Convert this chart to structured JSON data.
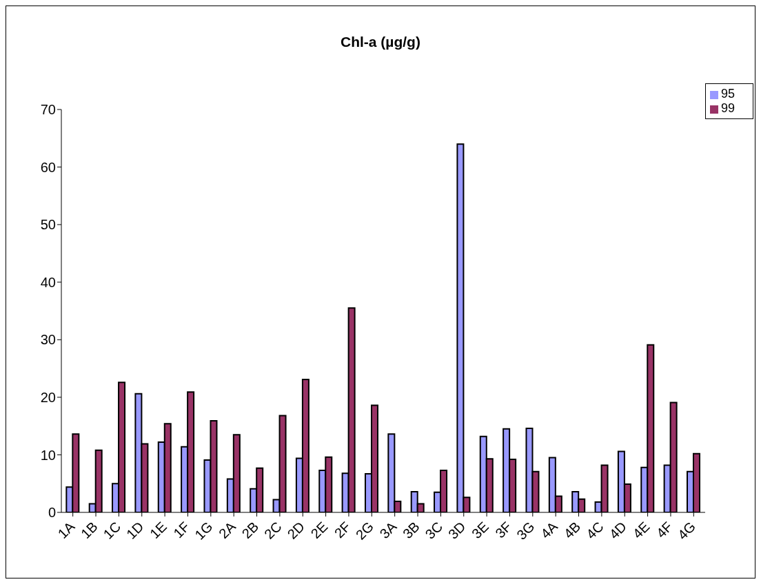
{
  "chart_data": {
    "type": "bar",
    "title": "Chl-a (µg/g)",
    "categories": [
      "1A",
      "1B",
      "1C",
      "1D",
      "1E",
      "1F",
      "1G",
      "2A",
      "2B",
      "2C",
      "2D",
      "2E",
      "2F",
      "2G",
      "3A",
      "3B",
      "3C",
      "3D",
      "3E",
      "3F",
      "3G",
      "4A",
      "4B",
      "4C",
      "4D",
      "4E",
      "4F",
      "4G"
    ],
    "series": [
      {
        "name": "95",
        "color": "#9999ff",
        "values": [
          4.4,
          1.5,
          5.0,
          20.6,
          12.2,
          11.4,
          9.1,
          5.8,
          4.1,
          2.2,
          9.4,
          7.3,
          6.8,
          6.7,
          13.6,
          3.6,
          3.5,
          64.0,
          13.2,
          14.5,
          14.6,
          9.5,
          3.6,
          1.8,
          10.6,
          7.8,
          8.2,
          7.1
        ]
      },
      {
        "name": "99",
        "color": "#993366",
        "values": [
          13.6,
          10.8,
          22.6,
          11.9,
          15.4,
          20.9,
          15.9,
          13.5,
          7.7,
          16.8,
          23.1,
          9.6,
          35.5,
          18.6,
          1.9,
          1.5,
          7.3,
          2.6,
          9.3,
          9.2,
          7.1,
          2.8,
          2.3,
          8.2,
          4.9,
          29.1,
          19.1,
          10.2
        ]
      }
    ],
    "ylim": [
      0,
      70
    ],
    "yticks": [
      0,
      10,
      20,
      30,
      40,
      50,
      60,
      70
    ],
    "grid": false,
    "legend": "top right"
  }
}
